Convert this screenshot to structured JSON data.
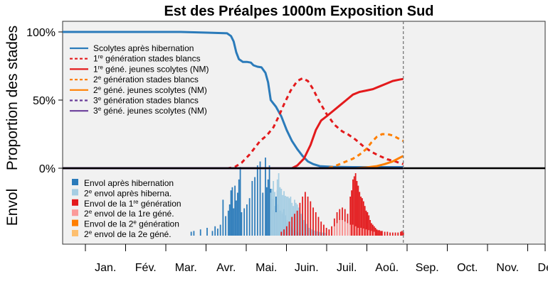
{
  "chart_data": {
    "type": "line",
    "title": "Est des Préalpes 1000m Exposition Sud",
    "ylabel_top": "Proportion des stades",
    "ylabel_bottom": "Envol",
    "yticks": [
      {
        "value": 1.0,
        "label": "100%"
      },
      {
        "value": 0.5,
        "label": "50%"
      },
      {
        "value": 0.0,
        "label": "0%"
      }
    ],
    "months": [
      "Jan.",
      "Fév.",
      "Mar.",
      "Avr.",
      "Mai.",
      "Juin.",
      "Juil.",
      "Aoû.",
      "Sep.",
      "Oct.",
      "Nov.",
      "Déc"
    ],
    "xlim_doy": [
      1,
      365
    ],
    "ylim": [
      0,
      1.05
    ],
    "current_day_doy": 258,
    "grid": false,
    "legend_placement": "top-left",
    "lines_legend": [
      {
        "sup": "",
        "pre": "",
        "text": "Scolytes après hibernation",
        "color": "#2b7bba",
        "dash": "solid"
      },
      {
        "pre": "1",
        "sup": "re",
        "text": " génération stades blancs",
        "color": "#e31a1c",
        "dash": "dashed"
      },
      {
        "pre": "1",
        "sup": "re",
        "text": " géné. jeunes scolytes (NM)",
        "color": "#e31a1c",
        "dash": "solid"
      },
      {
        "pre": "2",
        "sup": "e",
        "text": " génération stades blancs",
        "color": "#ff7f00",
        "dash": "dashed"
      },
      {
        "pre": "2",
        "sup": "e",
        "text": " géné. jeunes scolytes (NM)",
        "color": "#ff7f00",
        "dash": "solid"
      },
      {
        "pre": "3",
        "sup": "e",
        "text": " génération stades blancs",
        "color": "#6a3d9a",
        "dash": "dashed"
      },
      {
        "pre": "3",
        "sup": "e",
        "text": " géné. jeunes scolytes (NM)",
        "color": "#6a3d9a",
        "dash": "solid"
      }
    ],
    "bars_legend": [
      {
        "pre": "",
        "sup": "",
        "text": "Envol après hibernation",
        "color": "#2b7bba"
      },
      {
        "pre": "2",
        "sup": "e",
        "text": " envol après hiberna.",
        "color": "#a6cee3"
      },
      {
        "pre": "Envol de la 1",
        "sup": "re",
        "text": " génération",
        "color": "#e31a1c"
      },
      {
        "pre": "2",
        "sup": "e",
        "text": " envol de la 1re géné.",
        "color": "#fb9a99",
        "supIndex": 0
      },
      {
        "pre": "Envol de la 2",
        "sup": "e",
        "text": " génération",
        "color": "#ff7f00"
      },
      {
        "pre": "2",
        "sup": "e",
        "text": " envol de la 2e géné.",
        "color": "#fdbf6f"
      }
    ],
    "series": [
      {
        "name": "Scolytes après hibernation",
        "color": "#2b7bba",
        "dash": "solid",
        "points": [
          [
            1,
            1.0
          ],
          [
            60,
            1.0
          ],
          [
            90,
            1.0
          ],
          [
            110,
            0.995
          ],
          [
            125,
            0.99
          ],
          [
            128,
            0.97
          ],
          [
            130,
            0.93
          ],
          [
            132,
            0.85
          ],
          [
            134,
            0.8
          ],
          [
            137,
            0.78
          ],
          [
            140,
            0.78
          ],
          [
            143,
            0.775
          ],
          [
            145,
            0.755
          ],
          [
            148,
            0.745
          ],
          [
            151,
            0.74
          ],
          [
            154,
            0.7
          ],
          [
            156,
            0.63
          ],
          [
            158,
            0.5
          ],
          [
            162,
            0.45
          ],
          [
            166,
            0.38
          ],
          [
            170,
            0.28
          ],
          [
            174,
            0.2
          ],
          [
            178,
            0.14
          ],
          [
            182,
            0.09
          ],
          [
            186,
            0.05
          ],
          [
            190,
            0.03
          ],
          [
            195,
            0.015
          ],
          [
            205,
            0.01
          ],
          [
            220,
            0.008
          ],
          [
            258,
            0.008
          ]
        ]
      },
      {
        "name": "1re génération stades blancs",
        "color": "#e31a1c",
        "dash": "dashed",
        "points": [
          [
            1,
            0.0
          ],
          [
            126,
            0.0
          ],
          [
            131,
            0.01
          ],
          [
            136,
            0.04
          ],
          [
            142,
            0.1
          ],
          [
            146,
            0.15
          ],
          [
            150,
            0.2
          ],
          [
            155,
            0.24
          ],
          [
            160,
            0.3
          ],
          [
            164,
            0.38
          ],
          [
            168,
            0.47
          ],
          [
            173,
            0.57
          ],
          [
            178,
            0.64
          ],
          [
            182,
            0.66
          ],
          [
            186,
            0.64
          ],
          [
            190,
            0.58
          ],
          [
            194,
            0.5
          ],
          [
            200,
            0.4
          ],
          [
            206,
            0.32
          ],
          [
            212,
            0.27
          ],
          [
            216,
            0.25
          ],
          [
            222,
            0.21
          ],
          [
            228,
            0.16
          ],
          [
            234,
            0.12
          ],
          [
            240,
            0.09
          ],
          [
            246,
            0.065
          ],
          [
            252,
            0.05
          ],
          [
            256,
            0.035
          ],
          [
            258,
            0.03
          ]
        ]
      },
      {
        "name": "1re géné. jeunes scolytes (NM)",
        "color": "#e31a1c",
        "dash": "solid",
        "points": [
          [
            1,
            0.0
          ],
          [
            174,
            0.0
          ],
          [
            178,
            0.02
          ],
          [
            183,
            0.07
          ],
          [
            188,
            0.17
          ],
          [
            192,
            0.28
          ],
          [
            196,
            0.35
          ],
          [
            200,
            0.38
          ],
          [
            205,
            0.42
          ],
          [
            210,
            0.46
          ],
          [
            215,
            0.5
          ],
          [
            220,
            0.54
          ],
          [
            225,
            0.56
          ],
          [
            230,
            0.57
          ],
          [
            235,
            0.58
          ],
          [
            240,
            0.6
          ],
          [
            245,
            0.62
          ],
          [
            250,
            0.64
          ],
          [
            255,
            0.65
          ],
          [
            258,
            0.655
          ]
        ]
      },
      {
        "name": "2e génération stades blancs",
        "color": "#ff7f00",
        "dash": "dashed",
        "points": [
          [
            1,
            0.0
          ],
          [
            200,
            0.0
          ],
          [
            205,
            0.01
          ],
          [
            210,
            0.03
          ],
          [
            215,
            0.05
          ],
          [
            220,
            0.07
          ],
          [
            225,
            0.1
          ],
          [
            230,
            0.14
          ],
          [
            234,
            0.19
          ],
          [
            238,
            0.23
          ],
          [
            242,
            0.25
          ],
          [
            246,
            0.25
          ],
          [
            250,
            0.24
          ],
          [
            254,
            0.22
          ],
          [
            258,
            0.2
          ]
        ]
      },
      {
        "name": "2e géné. jeunes scolytes (NM)",
        "color": "#ff7f00",
        "dash": "solid",
        "points": [
          [
            1,
            0.0
          ],
          [
            222,
            0.0
          ],
          [
            230,
            0.005
          ],
          [
            238,
            0.015
          ],
          [
            244,
            0.03
          ],
          [
            250,
            0.05
          ],
          [
            255,
            0.075
          ],
          [
            258,
            0.09
          ]
        ]
      },
      {
        "name": "3e génération stades blancs",
        "color": "#6a3d9a",
        "dash": "dashed",
        "points": [
          [
            1,
            0.0
          ],
          [
            258,
            0.0
          ]
        ]
      },
      {
        "name": "3e géné. jeunes scolytes (NM)",
        "color": "#6a3d9a",
        "dash": "solid",
        "points": [
          [
            1,
            0.0
          ],
          [
            258,
            0.0
          ]
        ]
      }
    ],
    "flight_bars": {
      "note": "relative flight intensity per day (0-1)",
      "envol_apres_hibernation": [
        [
          98,
          0.05
        ],
        [
          100,
          0.06
        ],
        [
          105,
          0.08
        ],
        [
          110,
          0.1
        ],
        [
          114,
          0.06
        ],
        [
          116,
          0.12
        ],
        [
          118,
          0.09
        ],
        [
          120,
          0.14
        ],
        [
          122,
          0.46
        ],
        [
          124,
          0.25
        ],
        [
          126,
          0.32
        ],
        [
          127,
          0.4
        ],
        [
          128,
          0.58
        ],
        [
          129,
          0.62
        ],
        [
          130,
          0.35
        ],
        [
          131,
          0.64
        ],
        [
          132,
          0.45
        ],
        [
          133,
          0.55
        ],
        [
          134,
          0.72
        ],
        [
          135,
          0.88
        ],
        [
          136,
          0.3
        ],
        [
          138,
          0.35
        ],
        [
          140,
          0.4
        ],
        [
          142,
          0.48
        ],
        [
          144,
          0.7
        ],
        [
          146,
          0.75
        ],
        [
          148,
          0.9
        ],
        [
          150,
          0.95
        ],
        [
          152,
          0.55
        ],
        [
          154,
          1.0
        ],
        [
          155,
          0.62
        ],
        [
          156,
          0.72
        ],
        [
          157,
          0.9
        ],
        [
          158,
          0.6
        ],
        [
          159,
          0.47
        ],
        [
          160,
          0.33
        ],
        [
          161,
          0.38
        ],
        [
          162,
          0.5
        ],
        [
          163,
          0.58
        ],
        [
          164,
          0.4
        ],
        [
          165,
          0.32
        ],
        [
          166,
          0.28
        ],
        [
          167,
          0.3
        ],
        [
          168,
          0.34
        ],
        [
          169,
          0.26
        ],
        [
          170,
          0.2
        ],
        [
          171,
          0.16
        ],
        [
          172,
          0.14
        ],
        [
          173,
          0.12
        ],
        [
          174,
          0.1
        ],
        [
          175,
          0.08
        ],
        [
          176,
          0.07
        ],
        [
          177,
          0.06
        ],
        [
          178,
          0.05
        ],
        [
          179,
          0.04
        ],
        [
          180,
          0.035
        ],
        [
          181,
          0.03
        ],
        [
          182,
          0.025
        ],
        [
          183,
          0.02
        ]
      ],
      "second_envol_apres_hiberna": [
        [
          158,
          0.55
        ],
        [
          159,
          0.6
        ],
        [
          160,
          0.7
        ],
        [
          161,
          0.56
        ],
        [
          162,
          0.3
        ],
        [
          163,
          0.72
        ],
        [
          164,
          0.8
        ],
        [
          165,
          0.62
        ],
        [
          166,
          0.6
        ],
        [
          167,
          0.52
        ],
        [
          168,
          0.57
        ],
        [
          169,
          0.51
        ],
        [
          170,
          0.5
        ],
        [
          171,
          0.5
        ],
        [
          172,
          0.48
        ],
        [
          173,
          0.5
        ],
        [
          174,
          0.42
        ],
        [
          175,
          0.38
        ],
        [
          176,
          0.46
        ],
        [
          177,
          0.42
        ],
        [
          178,
          0.4
        ],
        [
          179,
          0.36
        ],
        [
          180,
          0.3
        ],
        [
          181,
          0.28
        ],
        [
          182,
          0.26
        ],
        [
          183,
          0.2
        ],
        [
          184,
          0.18
        ],
        [
          185,
          0.15
        ],
        [
          186,
          0.12
        ],
        [
          187,
          0.1
        ],
        [
          188,
          0.09
        ],
        [
          189,
          0.08
        ],
        [
          190,
          0.07
        ],
        [
          191,
          0.065
        ],
        [
          192,
          0.06
        ],
        [
          193,
          0.055
        ],
        [
          194,
          0.05
        ],
        [
          195,
          0.045
        ],
        [
          196,
          0.04
        ],
        [
          197,
          0.04
        ],
        [
          198,
          0.04
        ],
        [
          199,
          0.035
        ],
        [
          200,
          0.03
        ]
      ],
      "envol_1re_generation": [
        [
          166,
          0.05
        ],
        [
          168,
          0.08
        ],
        [
          170,
          0.12
        ],
        [
          172,
          0.18
        ],
        [
          174,
          0.24
        ],
        [
          176,
          0.28
        ],
        [
          178,
          0.32
        ],
        [
          180,
          0.42
        ],
        [
          182,
          0.5
        ],
        [
          184,
          0.56
        ],
        [
          186,
          0.5
        ],
        [
          188,
          0.44
        ],
        [
          190,
          0.36
        ],
        [
          192,
          0.3
        ],
        [
          194,
          0.24
        ],
        [
          196,
          0.18
        ],
        [
          198,
          0.14
        ],
        [
          200,
          0.1
        ],
        [
          202,
          0.08
        ],
        [
          204,
          0.12
        ],
        [
          206,
          0.22
        ],
        [
          208,
          0.3
        ],
        [
          210,
          0.34
        ],
        [
          212,
          0.36
        ],
        [
          214,
          0.34
        ],
        [
          216,
          0.28
        ],
        [
          218,
          0.5
        ],
        [
          219,
          0.58
        ],
        [
          220,
          0.72
        ],
        [
          221,
          0.76
        ],
        [
          222,
          0.8
        ],
        [
          223,
          0.7
        ],
        [
          224,
          0.64
        ],
        [
          225,
          0.56
        ],
        [
          226,
          0.5
        ],
        [
          227,
          0.48
        ],
        [
          228,
          0.44
        ],
        [
          229,
          0.38
        ],
        [
          230,
          0.32
        ],
        [
          231,
          0.3
        ],
        [
          232,
          0.26
        ],
        [
          233,
          0.2
        ],
        [
          234,
          0.16
        ],
        [
          235,
          0.14
        ],
        [
          236,
          0.12
        ],
        [
          237,
          0.1
        ],
        [
          238,
          0.08
        ],
        [
          239,
          0.07
        ],
        [
          240,
          0.07
        ],
        [
          241,
          0.06
        ],
        [
          242,
          0.06
        ],
        [
          244,
          0.05
        ],
        [
          246,
          0.05
        ],
        [
          248,
          0.04
        ],
        [
          250,
          0.04
        ],
        [
          252,
          0.04
        ],
        [
          254,
          0.04
        ],
        [
          256,
          0.05
        ],
        [
          257,
          0.06
        ],
        [
          258,
          0.05
        ]
      ],
      "second_envol_1re_gene": [
        [
          206,
          0.12
        ],
        [
          208,
          0.16
        ],
        [
          210,
          0.2
        ],
        [
          212,
          0.2
        ],
        [
          214,
          0.18
        ],
        [
          216,
          0.16
        ],
        [
          218,
          0.14
        ],
        [
          220,
          0.14
        ],
        [
          222,
          0.12
        ],
        [
          224,
          0.1
        ],
        [
          226,
          0.1
        ],
        [
          228,
          0.09
        ],
        [
          230,
          0.08
        ],
        [
          232,
          0.07
        ],
        [
          234,
          0.06
        ],
        [
          236,
          0.05
        ]
      ],
      "envol_2e_generation": [],
      "second_envol_2e_gene": []
    }
  }
}
